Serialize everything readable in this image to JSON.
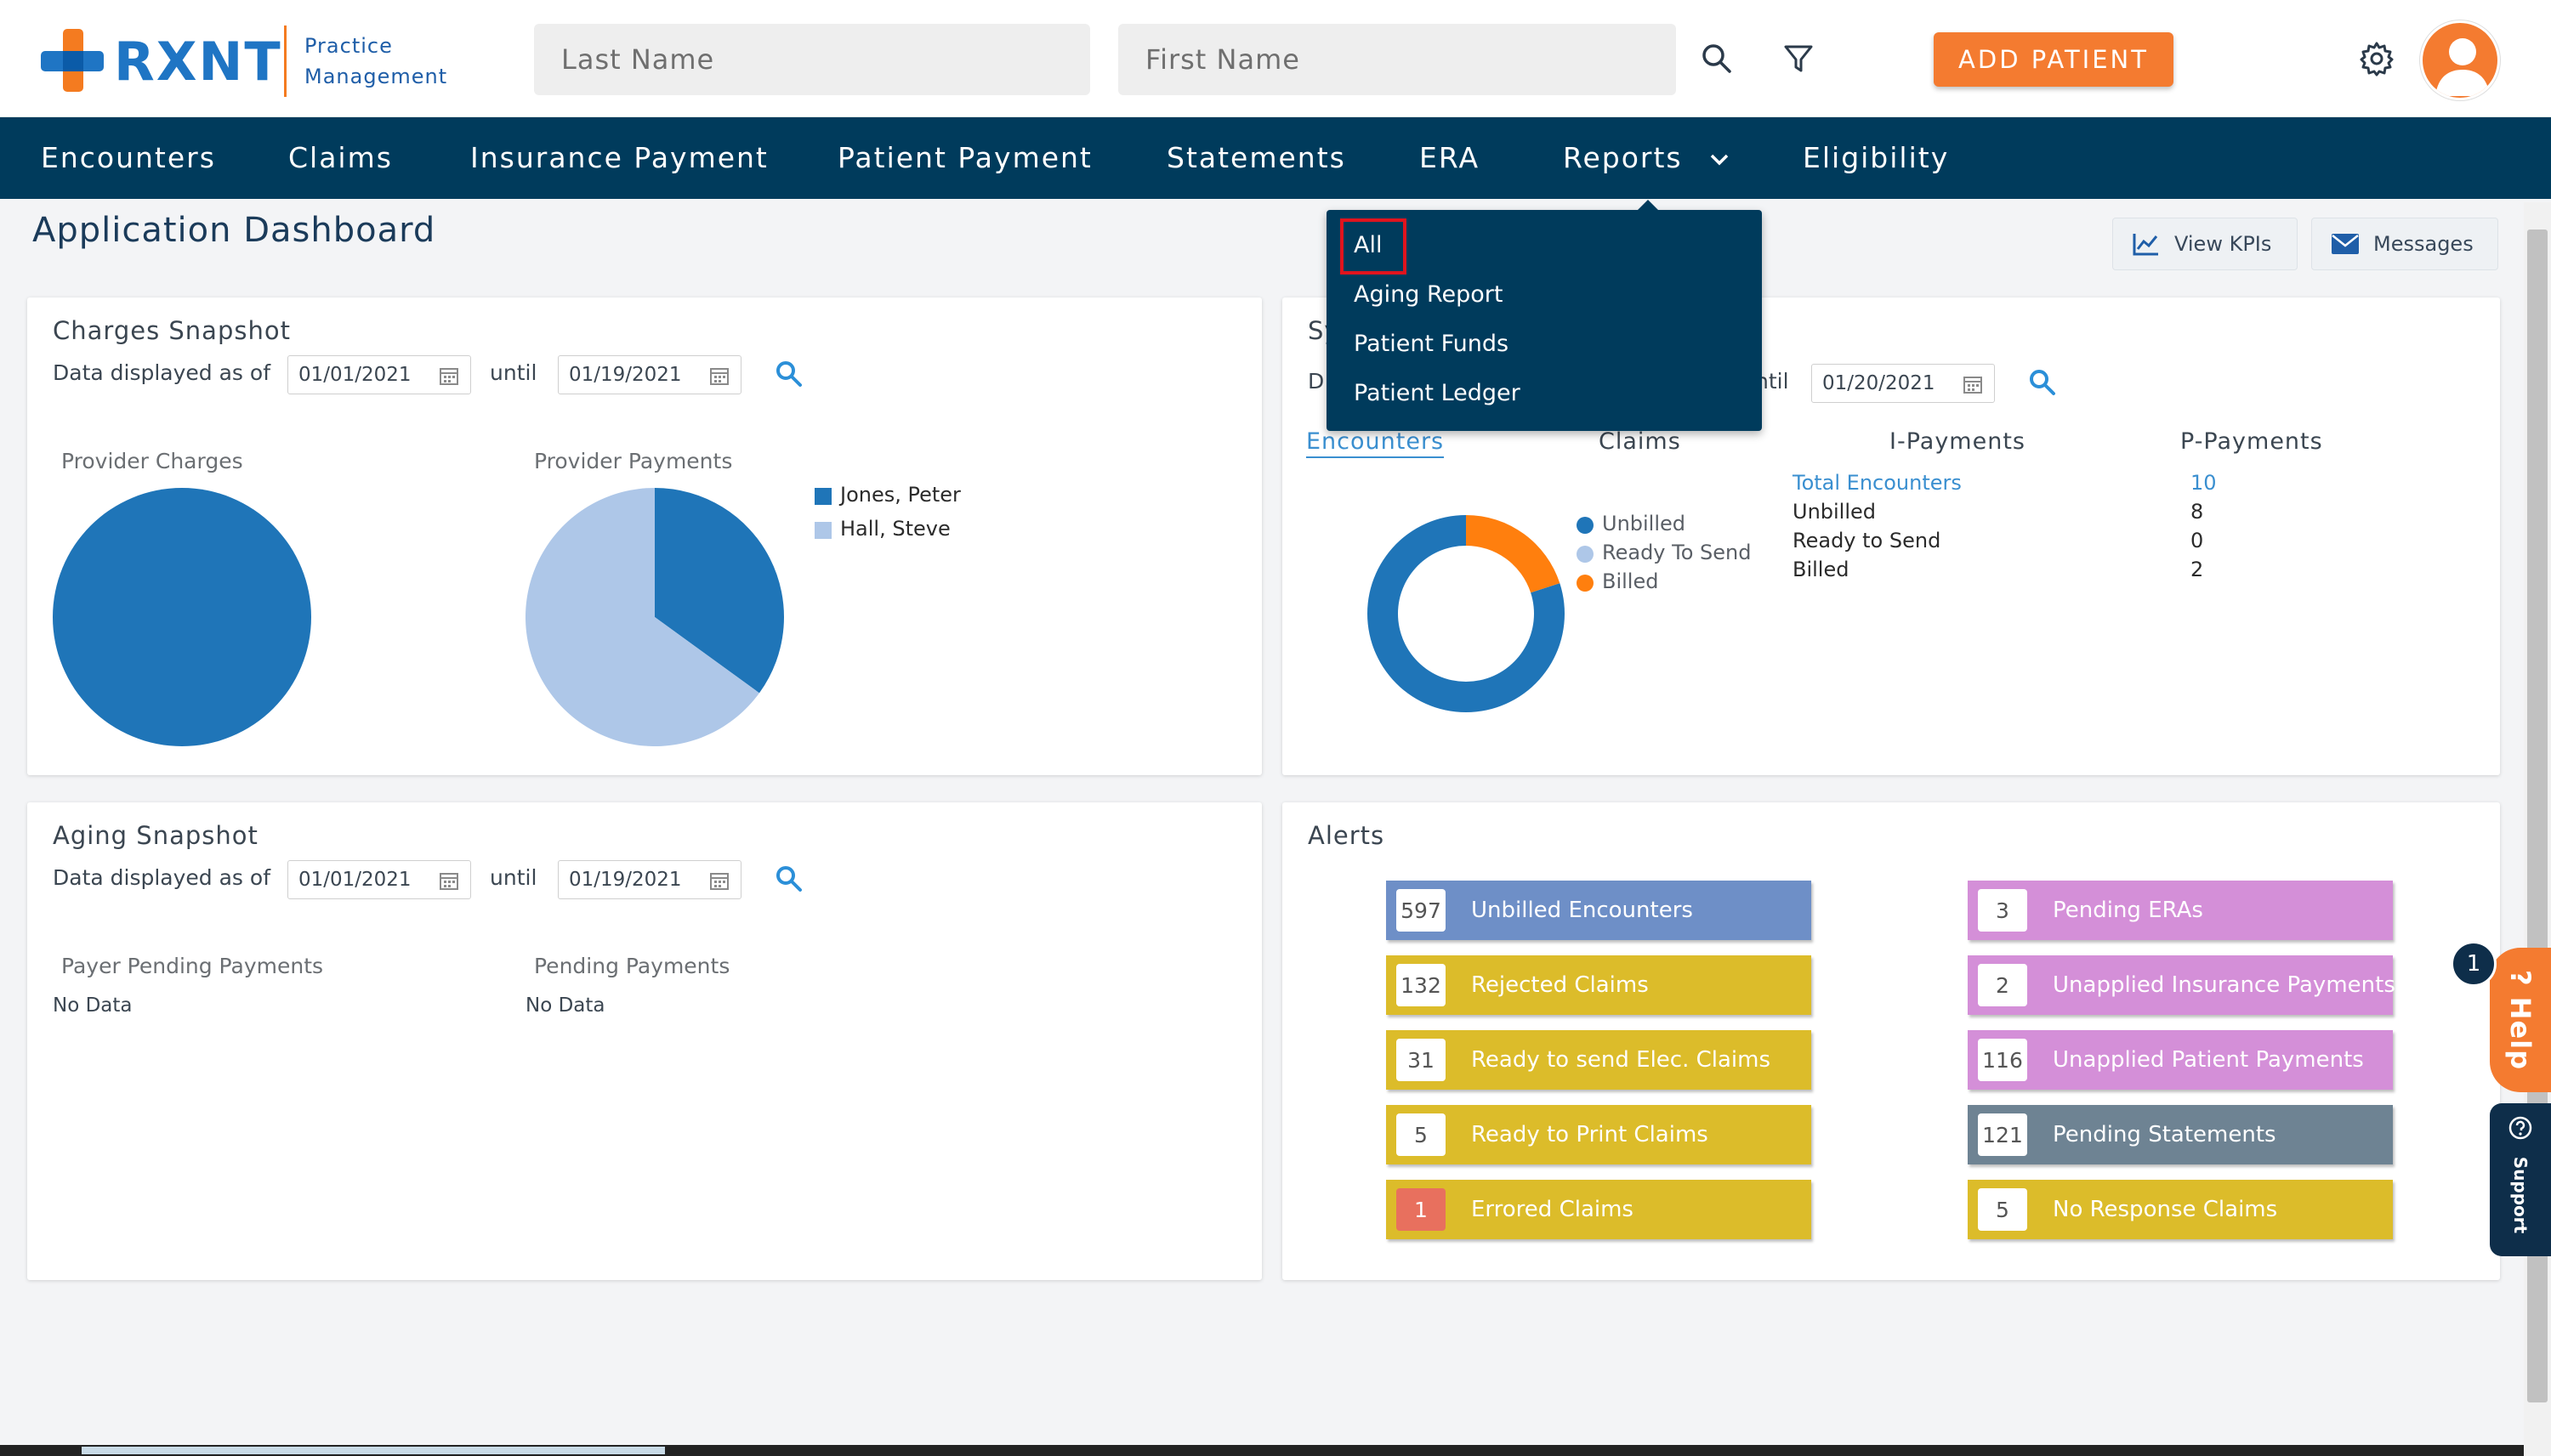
{
  "header": {
    "logo_word": "RXNT",
    "logo_sub_line1": "Practice",
    "logo_sub_line2": "Management",
    "last_name_placeholder": "Last Name",
    "first_name_placeholder": "First Name",
    "search_icon": "search-icon",
    "filter_icon": "filter-icon",
    "add_patient_label": "ADD PATIENT",
    "settings_icon": "gear-icon",
    "avatar_icon": "user-icon",
    "brand_orange": "#f47b20",
    "brand_blue": "#1f75c4"
  },
  "nav": {
    "items": [
      "Encounters",
      "Claims",
      "Insurance Payment",
      "Patient Payment",
      "Statements",
      "ERA",
      "Reports",
      "Eligibility"
    ],
    "bg": "#003b5c"
  },
  "reports_menu": {
    "items": [
      "All",
      "Aging Report",
      "Patient Funds",
      "Patient Ledger"
    ]
  },
  "page": {
    "title": "Application Dashboard",
    "view_kpis": "View KPIs",
    "messages": "Messages"
  },
  "charges": {
    "title": "Charges Snapshot",
    "data_as_of": "Data displayed as of",
    "from": "01/01/2021",
    "until": "until",
    "to": "01/19/2021",
    "provider_charges": "Provider Charges",
    "provider_payments": "Provider Payments",
    "legend": [
      "Jones, Peter",
      "Hall, Steve"
    ]
  },
  "summary": {
    "title_partial": "Sy",
    "data_partial": "D",
    "until_partial": "ntil",
    "to": "01/20/2021",
    "tabs": [
      "Encounters",
      "Claims",
      "I-Payments",
      "P-Payments"
    ],
    "legend": [
      "Unbilled",
      "Ready To Send",
      "Billed"
    ],
    "stats": [
      {
        "label": "Total Encounters",
        "value": "10"
      },
      {
        "label": "Unbilled",
        "value": "8"
      },
      {
        "label": "Ready to Send",
        "value": "0"
      },
      {
        "label": "Billed",
        "value": "2"
      }
    ]
  },
  "aging": {
    "title": "Aging Snapshot",
    "data_as_of": "Data displayed as of",
    "from": "01/01/2021",
    "until": "until",
    "to": "01/19/2021",
    "payer_pending": "Payer Pending Payments",
    "pending": "Pending Payments",
    "no_data": "No Data"
  },
  "alerts": {
    "title": "Alerts",
    "left": [
      {
        "count": "597",
        "label": "Unbilled Encounters",
        "color": "#6e8fc7"
      },
      {
        "count": "132",
        "label": "Rejected Claims",
        "color": "#dcbc2a"
      },
      {
        "count": "31",
        "label": "Ready to send Elec. Claims",
        "color": "#dcbc2a"
      },
      {
        "count": "5",
        "label": "Ready to Print Claims",
        "color": "#dcbc2a"
      },
      {
        "count": "1",
        "label": "Errored Claims",
        "color": "#dcbc2a"
      }
    ],
    "right": [
      {
        "count": "3",
        "label": "Pending ERAs",
        "color": "#d48fd8"
      },
      {
        "count": "2",
        "label": "Unapplied Insurance Payments",
        "color": "#d48fd8"
      },
      {
        "count": "116",
        "label": "Unapplied Patient Payments",
        "color": "#d48fd8"
      },
      {
        "count": "121",
        "label": "Pending Statements",
        "color": "#6e8393"
      },
      {
        "count": "5",
        "label": "No Response Claims",
        "color": "#dcbc2a"
      }
    ]
  },
  "widgets": {
    "help": "? Help",
    "help_badge": "1",
    "support": "Support"
  },
  "chart_data": [
    {
      "type": "pie",
      "title": "Provider Charges",
      "categories": [
        "Jones, Peter"
      ],
      "values": [
        100
      ],
      "colors": [
        "#1f75b8"
      ]
    },
    {
      "type": "pie",
      "title": "Provider Payments",
      "categories": [
        "Jones, Peter",
        "Hall, Steve"
      ],
      "values": [
        35,
        65
      ],
      "colors": [
        "#1f75b8",
        "#aec7e8"
      ]
    },
    {
      "type": "pie",
      "title": "Encounters",
      "categories": [
        "Unbilled",
        "Ready To Send",
        "Billed"
      ],
      "values": [
        8,
        0,
        2
      ],
      "colors": [
        "#1f75b8",
        "#aec7e8",
        "#ff7f0e"
      ]
    }
  ]
}
